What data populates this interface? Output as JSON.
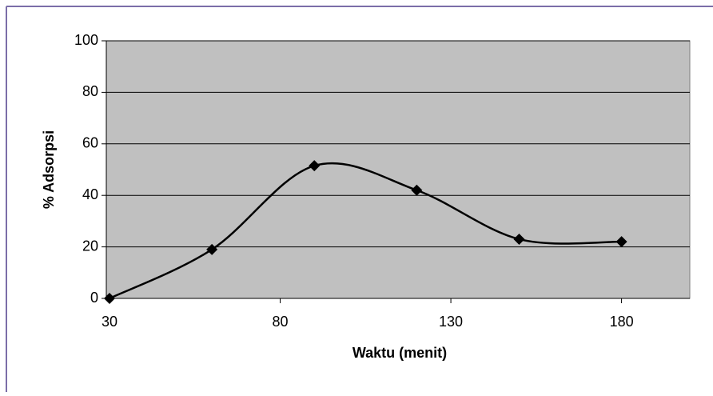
{
  "chart_data": {
    "type": "line",
    "xlabel": "Waktu (menit)",
    "ylabel": "% Adsorpsi",
    "x": [
      30,
      60,
      90,
      120,
      150,
      180
    ],
    "series": [
      {
        "color": "#000000",
        "values": [
          0,
          19,
          51.5,
          42,
          23,
          22
        ]
      }
    ],
    "xlim": [
      30,
      200
    ],
    "xticks": [
      30,
      80,
      130,
      180
    ],
    "ylim": [
      0,
      100
    ],
    "yticks": [
      0,
      20,
      40,
      60,
      80,
      100
    ],
    "grid": true,
    "smooth": true,
    "marker": "diamond",
    "plot_background": "#c0c0c0"
  }
}
